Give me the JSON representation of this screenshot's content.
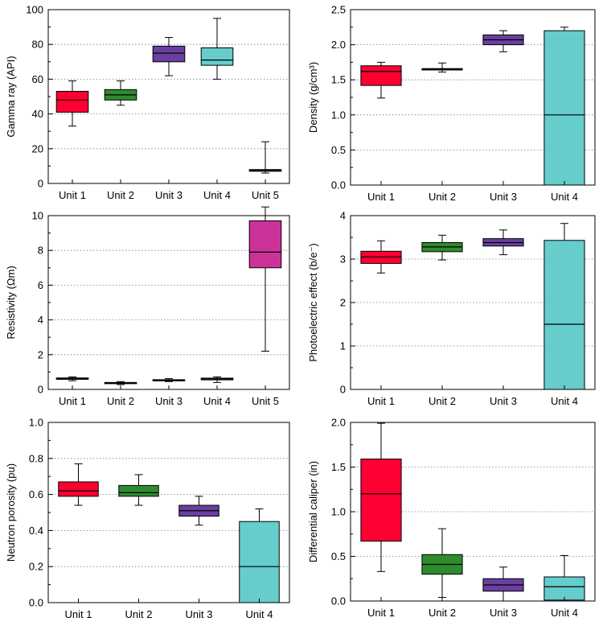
{
  "chart_data": [
    {
      "type": "boxplot",
      "ylabel": "Gamma ray (API)",
      "ylim": [
        0,
        100
      ],
      "yticks": [
        0,
        20,
        40,
        60,
        80,
        100
      ],
      "grid": true,
      "categories": [
        "Unit 1",
        "Unit 2",
        "Unit 3",
        "Unit 4",
        "Unit 5"
      ],
      "boxes": [
        {
          "min": 33,
          "q1": 41,
          "median": 48,
          "q3": 53,
          "max": 59,
          "color": "#ff0033"
        },
        {
          "min": 45,
          "q1": 48,
          "median": 51,
          "q3": 54,
          "max": 59,
          "color": "#2e8b2e"
        },
        {
          "min": 62,
          "q1": 70,
          "median": 75,
          "q3": 79,
          "max": 84,
          "color": "#6a3fa0"
        },
        {
          "min": 60,
          "q1": 68,
          "median": 71,
          "q3": 78,
          "max": 95,
          "color": "#66cccc"
        },
        {
          "min": 6,
          "q1": 7,
          "median": 7.5,
          "q3": 8,
          "max": 24,
          "color": "#cc3399"
        }
      ]
    },
    {
      "type": "boxplot",
      "ylabel": "Density (g/cm³)",
      "ylim": [
        0,
        2.5
      ],
      "yticks": [
        0.0,
        0.5,
        1.0,
        1.5,
        2.0,
        2.5
      ],
      "grid": true,
      "categories": [
        "Unit 1",
        "Unit 2",
        "Unit 3",
        "Unit 4"
      ],
      "boxes": [
        {
          "min": 1.24,
          "q1": 1.42,
          "median": 1.62,
          "q3": 1.7,
          "max": 1.75,
          "color": "#ff0033"
        },
        {
          "min": 1.61,
          "q1": 1.64,
          "median": 1.65,
          "q3": 1.66,
          "max": 1.74,
          "color": "#2e8b2e"
        },
        {
          "min": 1.9,
          "q1": 2.0,
          "median": 2.07,
          "q3": 2.14,
          "max": 2.2,
          "color": "#6a3fa0"
        },
        {
          "min": 0.0,
          "q1": 0.0,
          "median": 1.0,
          "q3": 2.2,
          "max": 2.25,
          "color": "#66cccc"
        }
      ]
    },
    {
      "type": "boxplot",
      "ylabel": "Resistivity (Ωm)",
      "ylim": [
        0,
        10
      ],
      "yticks": [
        0,
        2,
        4,
        6,
        8,
        10
      ],
      "grid": true,
      "categories": [
        "Unit 1",
        "Unit 2",
        "Unit 3",
        "Unit 4",
        "Unit 5"
      ],
      "boxes": [
        {
          "min": 0.5,
          "q1": 0.58,
          "median": 0.62,
          "q3": 0.66,
          "max": 0.72,
          "color": "#ff0033"
        },
        {
          "min": 0.28,
          "q1": 0.33,
          "median": 0.36,
          "q3": 0.4,
          "max": 0.45,
          "color": "#2e8b2e"
        },
        {
          "min": 0.45,
          "q1": 0.5,
          "median": 0.53,
          "q3": 0.56,
          "max": 0.62,
          "color": "#6a3fa0"
        },
        {
          "min": 0.4,
          "q1": 0.55,
          "median": 0.6,
          "q3": 0.65,
          "max": 0.72,
          "color": "#66cccc"
        },
        {
          "min": 2.2,
          "q1": 7.0,
          "median": 7.9,
          "q3": 9.7,
          "max": 10.5,
          "color": "#cc3399"
        }
      ]
    },
    {
      "type": "boxplot",
      "ylabel": "Photoelectric effect (b/e⁻)",
      "ylim": [
        0,
        4
      ],
      "yticks": [
        0,
        1,
        2,
        3,
        4
      ],
      "grid": true,
      "categories": [
        "Unit 1",
        "Unit 2",
        "Unit 3",
        "Unit 4"
      ],
      "boxes": [
        {
          "min": 2.68,
          "q1": 2.9,
          "median": 3.05,
          "q3": 3.18,
          "max": 3.42,
          "color": "#ff0033"
        },
        {
          "min": 2.98,
          "q1": 3.17,
          "median": 3.28,
          "q3": 3.38,
          "max": 3.55,
          "color": "#2e8b2e"
        },
        {
          "min": 3.1,
          "q1": 3.3,
          "median": 3.38,
          "q3": 3.47,
          "max": 3.67,
          "color": "#6a3fa0"
        },
        {
          "min": 0.0,
          "q1": 0.0,
          "median": 1.5,
          "q3": 3.43,
          "max": 3.82,
          "color": "#66cccc"
        }
      ]
    },
    {
      "type": "boxplot",
      "ylabel": "Neutron porosity (pu)",
      "ylim": [
        0,
        1
      ],
      "yticks": [
        0.0,
        0.2,
        0.4,
        0.6,
        0.8,
        1.0
      ],
      "grid": true,
      "categories": [
        "Unit 1",
        "Unit 2",
        "Unit 3",
        "Unit 4"
      ],
      "boxes": [
        {
          "min": 0.54,
          "q1": 0.59,
          "median": 0.62,
          "q3": 0.67,
          "max": 0.77,
          "color": "#ff0033"
        },
        {
          "min": 0.54,
          "q1": 0.59,
          "median": 0.61,
          "q3": 0.65,
          "max": 0.71,
          "color": "#2e8b2e"
        },
        {
          "min": 0.43,
          "q1": 0.48,
          "median": 0.51,
          "q3": 0.54,
          "max": 0.59,
          "color": "#6a3fa0"
        },
        {
          "min": 0.0,
          "q1": 0.0,
          "median": 0.2,
          "q3": 0.45,
          "max": 0.52,
          "color": "#66cccc"
        }
      ]
    },
    {
      "type": "boxplot",
      "ylabel": "Differential caliper (in)",
      "ylim": [
        0,
        2
      ],
      "yticks": [
        0.0,
        0.5,
        1.0,
        1.5,
        2.0
      ],
      "grid": true,
      "categories": [
        "Unit 1",
        "Unit 2",
        "Unit 3",
        "Unit 4"
      ],
      "boxes": [
        {
          "min": 0.33,
          "q1": 0.67,
          "median": 1.2,
          "q3": 1.59,
          "max": 1.99,
          "color": "#ff0033"
        },
        {
          "min": 0.04,
          "q1": 0.3,
          "median": 0.41,
          "q3": 0.52,
          "max": 0.81,
          "color": "#2e8b2e"
        },
        {
          "min": 0.0,
          "q1": 0.11,
          "median": 0.18,
          "q3": 0.25,
          "max": 0.38,
          "color": "#6a3fa0"
        },
        {
          "min": 0.0,
          "q1": 0.01,
          "median": 0.16,
          "q3": 0.27,
          "max": 0.51,
          "color": "#66cccc"
        }
      ]
    }
  ]
}
